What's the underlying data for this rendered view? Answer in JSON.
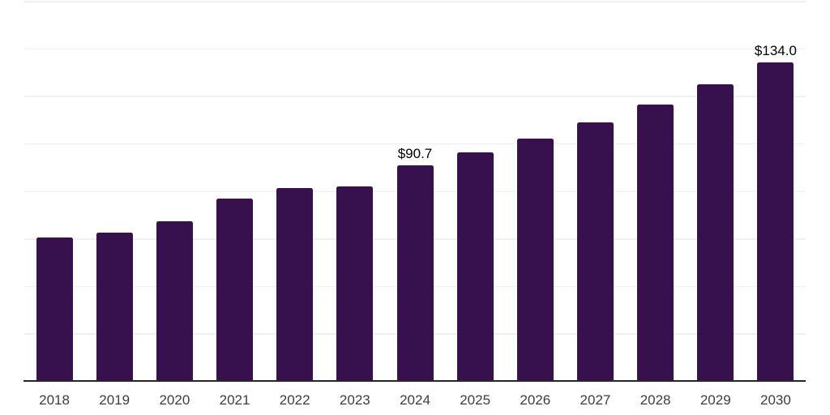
{
  "chart_data": {
    "type": "bar",
    "title": "",
    "xlabel": "",
    "ylabel": "",
    "categories": [
      "2018",
      "2019",
      "2020",
      "2021",
      "2022",
      "2023",
      "2024",
      "2025",
      "2026",
      "2027",
      "2028",
      "2029",
      "2030"
    ],
    "values": [
      60.4,
      62.3,
      67.2,
      76.6,
      81.1,
      81.8,
      90.7,
      96.2,
      101.9,
      108.7,
      116.2,
      124.9,
      134.0
    ],
    "ylim": [
      0,
      160
    ],
    "grid_step": 20,
    "grid": "horizontal-only",
    "legend_position": "none",
    "y_tick_labels_visible": false,
    "annotations": [
      {
        "index": 6,
        "category": "2024",
        "text": "$90.7"
      },
      {
        "index": 12,
        "category": "2030",
        "text": "$134.0"
      }
    ],
    "colors": {
      "bar": "#36114E",
      "gridline": "#F0F0F1",
      "axis_line": "#262626",
      "tick_label": "#3D3D3D",
      "annotation": "#000000",
      "background": "#FFFFFF"
    }
  }
}
